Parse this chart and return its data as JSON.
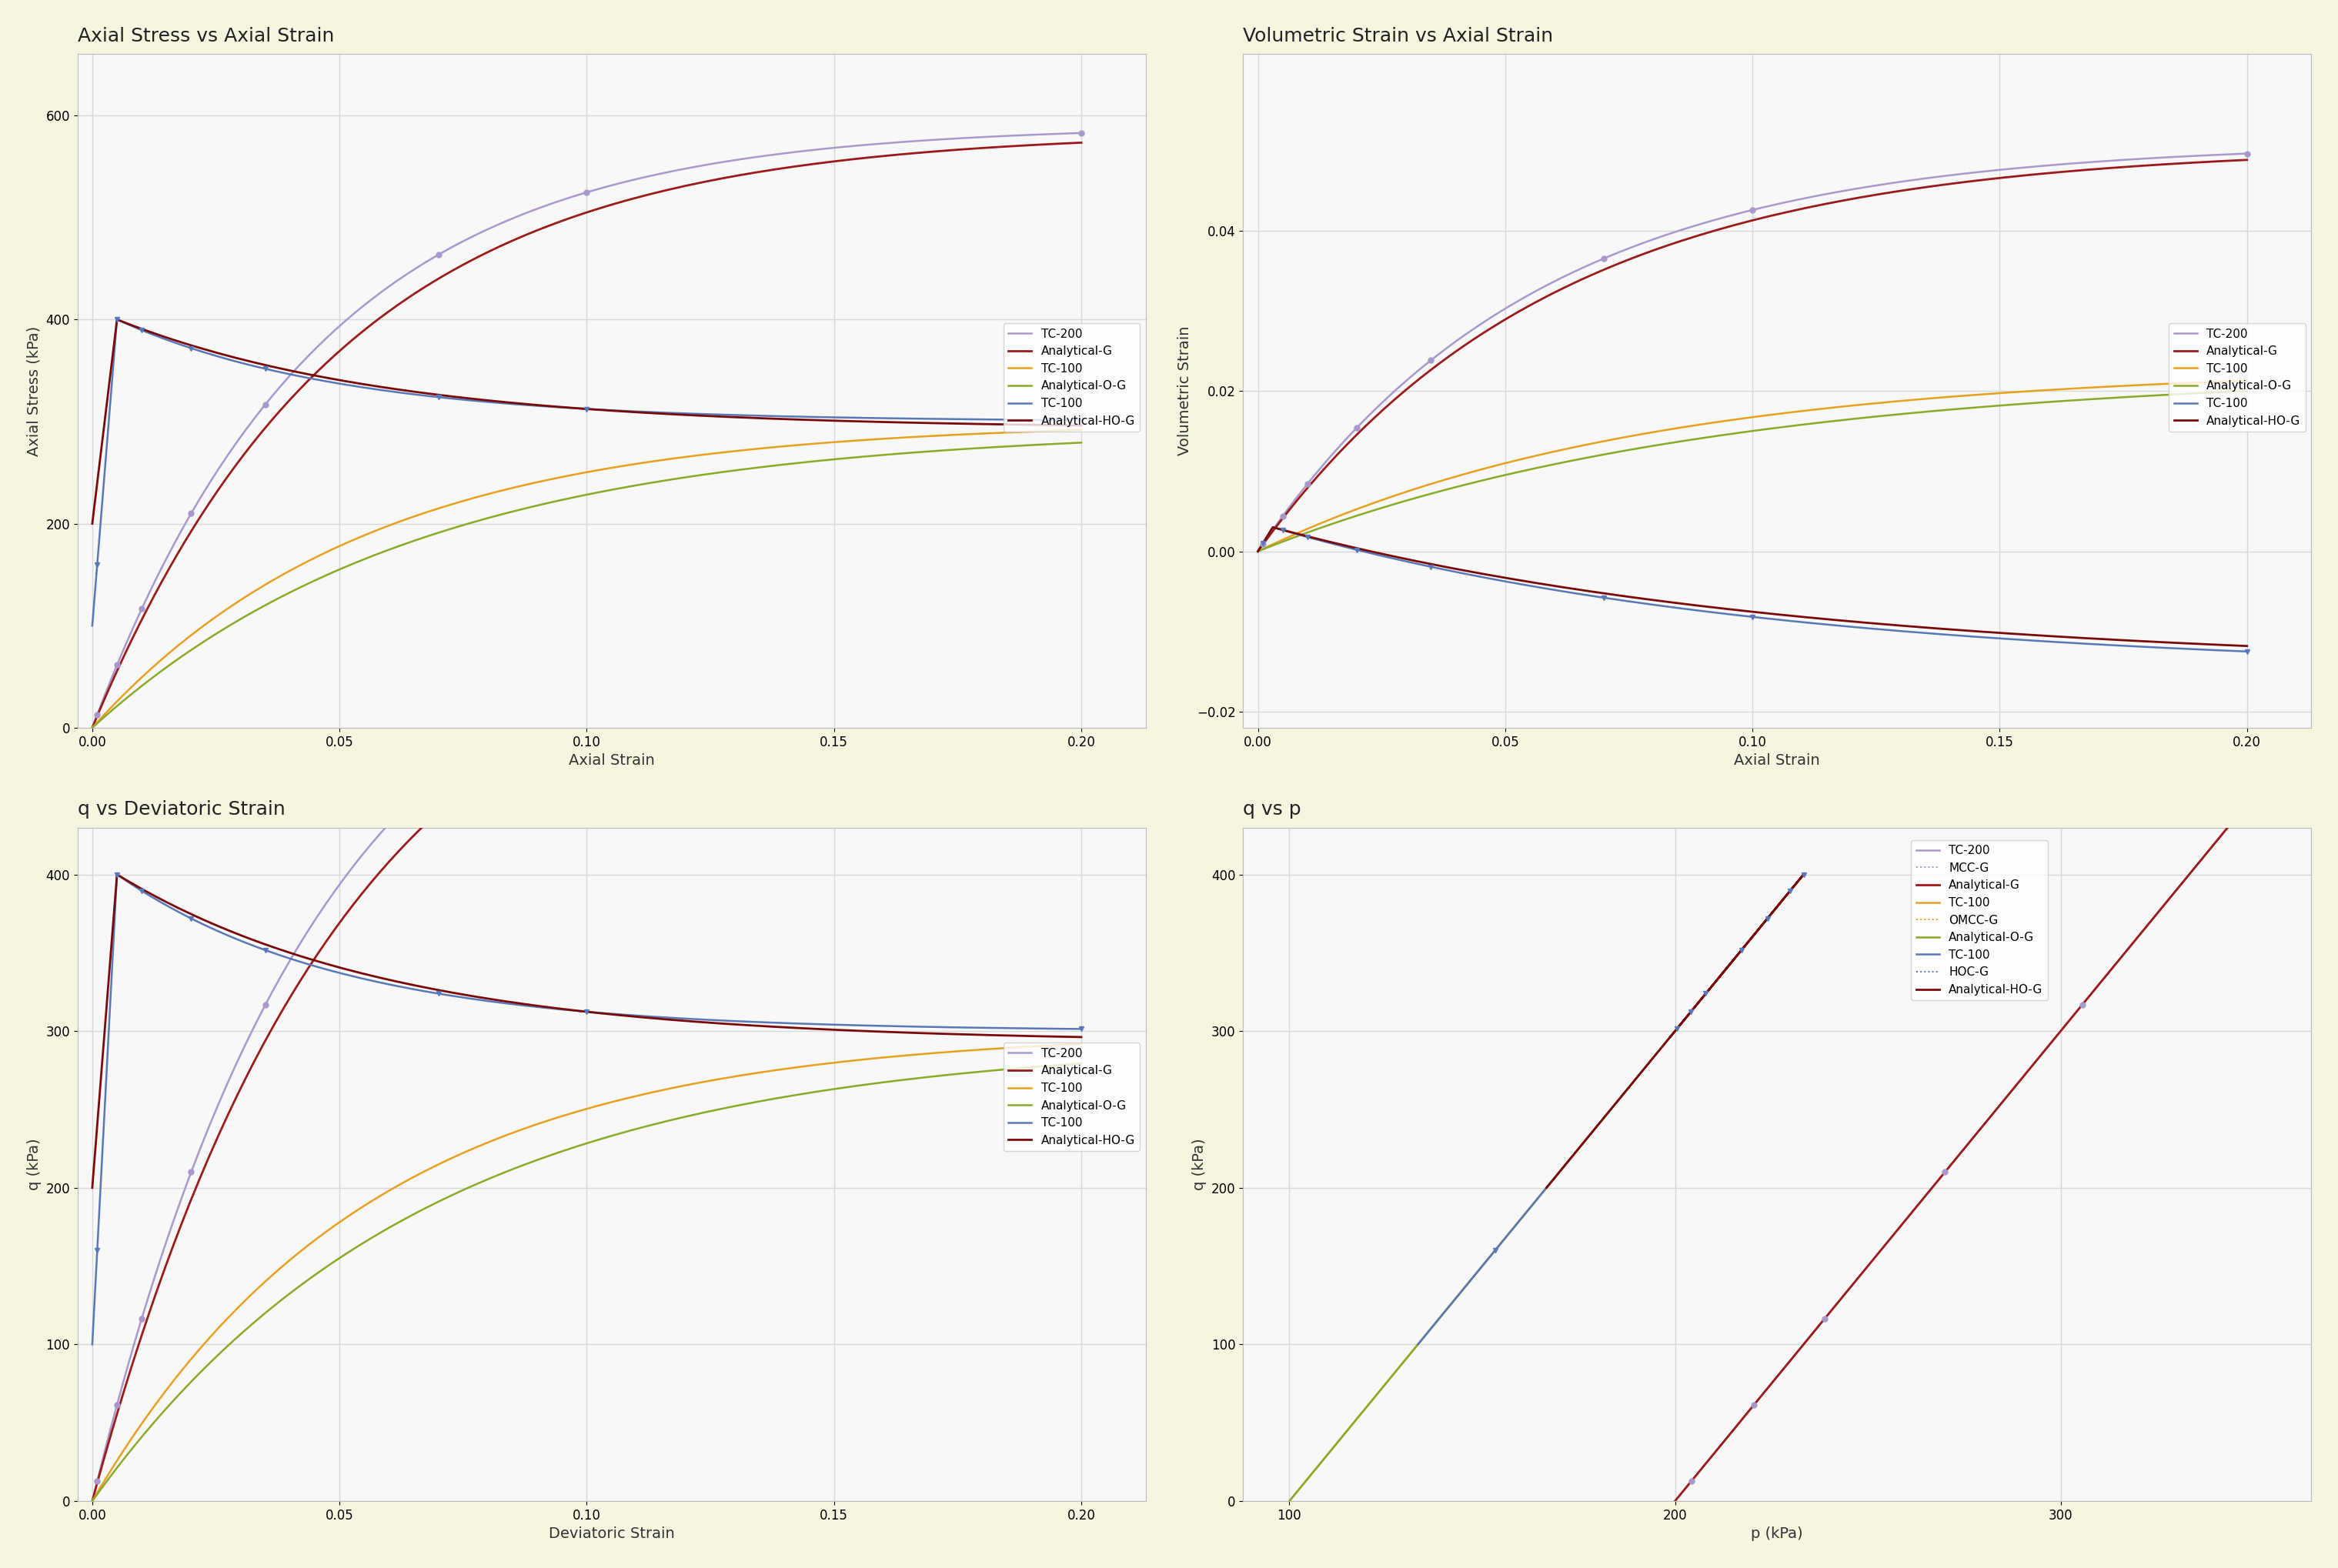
{
  "background_color": "#f5f5e0",
  "plot_bg_color": "#f8f8f8",
  "grid_color": "#d8d8d8",
  "subplot_titles": [
    "Axial Stress vs Axial Strain",
    "Volumetric Strain vs Axial Strain",
    "q vs Deviatoric Strain",
    "q vs p"
  ],
  "colors": {
    "TC200": "#a898cc",
    "Analytical_G": "#9b1b1b",
    "TC100_orange": "#e8a020",
    "Analytical_O_G": "#8aaa28",
    "TC100_blue": "#5878b8",
    "Analytical_HO_G": "#7a0a0a"
  },
  "legend1": [
    "TC-200",
    "Analytical-G",
    "TC-100",
    "Analytical-O-G",
    "TC-100",
    "Analytical-HO-G"
  ],
  "legend4": [
    "TC-200",
    "MCC-G",
    "Analytical-G",
    "TC-100",
    "OMCC-G",
    "Analytical-O-G",
    "TC-100",
    "HOC-G",
    "Analytical-HO-G"
  ],
  "axial_strain_ticks": [
    0,
    0.05,
    0.1,
    0.15,
    0.2
  ],
  "axial_stress_yticks": [
    0,
    200,
    400,
    600
  ],
  "vol_strain_yticks": [
    -0.02,
    0,
    0.02,
    0.04
  ],
  "q_yticks": [
    0,
    100,
    200,
    300,
    400
  ],
  "q_vs_p_xticks": [
    100,
    200,
    300
  ],
  "q_vs_p_yticks": [
    0,
    100,
    200,
    300,
    400
  ]
}
